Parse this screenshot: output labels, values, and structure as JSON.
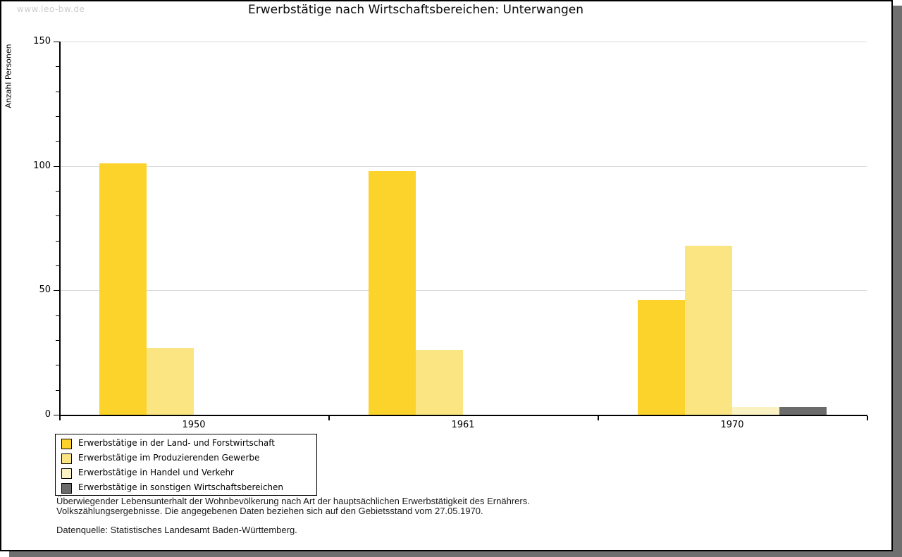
{
  "watermark": "www.leo-bw.de",
  "title": "Erwerbstätige nach Wirtschaftsbereichen: Unterwangen",
  "footnotes": {
    "line1": "Überwiegender Lebensunterhalt der Wohnbevölkerung nach Art der hauptsächlichen Erwerbstätigkeit des Ernährers.",
    "line2": "Volkszählungsergebnisse. Die angegebenen Daten beziehen sich auf den Gebietsstand vom 27.05.1970.",
    "source": "Datenquelle: Statistisches Landesamt Baden-Württemberg."
  },
  "colors": {
    "shadow": "#6f6f6f",
    "gridline": "#dbdbdb",
    "axis": "#000000",
    "watermark": "#cdcdcd"
  },
  "chart_data": {
    "type": "bar",
    "title": "Erwerbstätige nach Wirtschaftsbereichen: Unterwangen",
    "xlabel": "",
    "ylabel": "Anzahl Personen",
    "categories": [
      "1950",
      "1961",
      "1970"
    ],
    "series": [
      {
        "name": "Erwerbstätige in der Land- und Forstwirtschaft",
        "color": "#FCD32B",
        "values": [
          101,
          98,
          46
        ]
      },
      {
        "name": "Erwerbstätige im Produzierenden Gewerbe",
        "color": "#FBE582",
        "values": [
          27,
          26,
          68
        ]
      },
      {
        "name": "Erwerbstätige in Handel und Verkehr",
        "color": "#FBF2C4",
        "values": [
          0,
          0,
          3
        ]
      },
      {
        "name": "Erwerbstätige in sonstigen Wirtschaftsbereichen",
        "color": "#6B6B6B",
        "values": [
          0,
          0,
          3
        ]
      }
    ],
    "ylim": [
      0,
      150
    ],
    "yticks_major": [
      0,
      50,
      100,
      150
    ],
    "ytick_minor_step": 10,
    "grid": "horizontal lines at major y ticks, light gray",
    "legend_position": "bottom-left box with black border"
  }
}
